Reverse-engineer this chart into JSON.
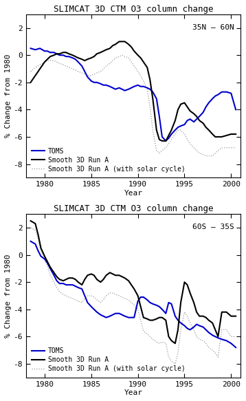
{
  "title": "SLIMCAT 3D CTM O3 column change",
  "ylabel": "% Change from 1980",
  "xlabel": "Year",
  "xlim": [
    1978.0,
    2001.0
  ],
  "ylim": [
    -9,
    3
  ],
  "yticks": [
    -8,
    -6,
    -4,
    -2,
    0,
    2
  ],
  "xticks": [
    1980,
    1985,
    1990,
    1995,
    2000
  ],
  "panel1_label": "35N – 60N",
  "panel2_label": "60S – 35S",
  "colors": {
    "toms": "#0000cc",
    "run_a": "#000000",
    "solar": "#999999"
  },
  "legend_entries": [
    "TOMS",
    "Smooth 3D Run A",
    "Smooth 3D Run A (with solar cycle)"
  ],
  "panel1": {
    "toms_x": [
      1978.5,
      1979.0,
      1979.5,
      1980.0,
      1980.3,
      1980.6,
      1981.0,
      1981.3,
      1981.6,
      1982.0,
      1982.3,
      1982.6,
      1983.0,
      1983.3,
      1983.6,
      1984.0,
      1984.3,
      1984.6,
      1985.0,
      1985.3,
      1985.6,
      1986.0,
      1986.3,
      1986.6,
      1987.0,
      1987.3,
      1987.6,
      1988.0,
      1988.3,
      1988.6,
      1989.0,
      1989.3,
      1989.6,
      1990.0,
      1990.3,
      1990.6,
      1991.0,
      1991.3,
      1991.6,
      1992.0,
      1992.3,
      1992.6,
      1993.0,
      1993.3,
      1993.6,
      1994.0,
      1994.3,
      1994.6,
      1995.0,
      1995.3,
      1995.6,
      1996.0,
      1996.3,
      1996.6,
      1997.0,
      1997.3,
      1997.6,
      1998.0,
      1998.3,
      1998.6,
      1999.0,
      1999.5,
      2000.0,
      2000.5
    ],
    "toms_y": [
      0.5,
      0.4,
      0.5,
      0.3,
      0.3,
      0.2,
      0.2,
      0.1,
      0.0,
      0.0,
      -0.1,
      -0.1,
      -0.2,
      -0.3,
      -0.5,
      -0.8,
      -1.2,
      -1.6,
      -1.9,
      -2.0,
      -2.0,
      -2.1,
      -2.2,
      -2.2,
      -2.3,
      -2.4,
      -2.5,
      -2.4,
      -2.5,
      -2.6,
      -2.5,
      -2.4,
      -2.3,
      -2.2,
      -2.3,
      -2.3,
      -2.4,
      -2.5,
      -2.7,
      -3.2,
      -4.5,
      -6.0,
      -6.3,
      -6.1,
      -5.8,
      -5.5,
      -5.3,
      -5.2,
      -5.1,
      -4.8,
      -4.7,
      -4.9,
      -4.7,
      -4.5,
      -4.2,
      -3.8,
      -3.5,
      -3.2,
      -3.0,
      -2.9,
      -2.7,
      -2.7,
      -2.8,
      -4.0
    ],
    "runa_x": [
      1978.5,
      1979.0,
      1979.5,
      1980.0,
      1980.3,
      1980.6,
      1981.0,
      1981.3,
      1981.6,
      1982.0,
      1982.3,
      1982.6,
      1983.0,
      1983.3,
      1983.6,
      1984.0,
      1984.3,
      1984.6,
      1985.0,
      1985.3,
      1985.6,
      1986.0,
      1986.3,
      1986.6,
      1987.0,
      1987.3,
      1987.6,
      1988.0,
      1988.3,
      1988.6,
      1989.0,
      1989.3,
      1989.6,
      1990.0,
      1990.3,
      1990.6,
      1991.0,
      1991.3,
      1991.6,
      1992.0,
      1992.3,
      1992.6,
      1993.0,
      1993.3,
      1993.6,
      1994.0,
      1994.3,
      1994.6,
      1995.0,
      1995.3,
      1995.6,
      1996.0,
      1996.3,
      1996.6,
      1997.0,
      1997.3,
      1997.6,
      1998.0,
      1998.3,
      1998.6,
      1999.0,
      1999.5,
      2000.0,
      2000.5
    ],
    "runa_y": [
      -2.0,
      -1.5,
      -1.0,
      -0.5,
      -0.3,
      -0.1,
      0.0,
      0.1,
      0.1,
      0.2,
      0.2,
      0.1,
      0.0,
      -0.1,
      -0.2,
      -0.3,
      -0.4,
      -0.3,
      -0.2,
      -0.1,
      0.1,
      0.2,
      0.3,
      0.4,
      0.5,
      0.7,
      0.8,
      1.0,
      1.0,
      1.0,
      0.8,
      0.6,
      0.3,
      0.0,
      -0.2,
      -0.5,
      -0.9,
      -1.8,
      -3.2,
      -5.5,
      -6.2,
      -6.3,
      -6.3,
      -5.9,
      -5.5,
      -4.8,
      -4.0,
      -3.6,
      -3.5,
      -3.8,
      -4.1,
      -4.3,
      -4.5,
      -4.8,
      -5.0,
      -5.3,
      -5.5,
      -5.8,
      -6.0,
      -6.0,
      -6.0,
      -5.9,
      -5.8,
      -5.8
    ],
    "solar_x": [
      1978.5,
      1979.0,
      1979.5,
      1980.0,
      1980.3,
      1980.6,
      1981.0,
      1981.3,
      1981.6,
      1982.0,
      1982.3,
      1982.6,
      1983.0,
      1983.3,
      1983.6,
      1984.0,
      1984.3,
      1984.6,
      1985.0,
      1985.3,
      1985.6,
      1986.0,
      1986.3,
      1986.6,
      1987.0,
      1987.3,
      1987.6,
      1988.0,
      1988.3,
      1988.6,
      1989.0,
      1989.3,
      1989.6,
      1990.0,
      1990.3,
      1990.6,
      1991.0,
      1991.3,
      1991.6,
      1992.0,
      1992.3,
      1992.6,
      1993.0,
      1993.3,
      1993.6,
      1994.0,
      1994.3,
      1994.6,
      1995.0,
      1995.3,
      1995.6,
      1996.0,
      1996.3,
      1996.6,
      1997.0,
      1997.3,
      1997.6,
      1998.0,
      1998.3,
      1998.6,
      1999.0,
      1999.5,
      2000.0,
      2000.5
    ],
    "solar_y": [
      -1.2,
      -0.9,
      -0.7,
      -0.5,
      -0.4,
      -0.4,
      -0.4,
      -0.5,
      -0.6,
      -0.7,
      -0.8,
      -0.9,
      -1.0,
      -1.1,
      -1.2,
      -1.3,
      -1.4,
      -1.5,
      -1.5,
      -1.4,
      -1.3,
      -1.2,
      -1.0,
      -0.8,
      -0.6,
      -0.4,
      -0.2,
      -0.1,
      0.0,
      -0.1,
      -0.2,
      -0.5,
      -0.8,
      -1.2,
      -1.5,
      -1.9,
      -2.5,
      -3.8,
      -5.5,
      -7.0,
      -7.2,
      -7.0,
      -6.8,
      -6.5,
      -6.2,
      -5.8,
      -5.5,
      -5.5,
      -5.8,
      -6.2,
      -6.5,
      -6.8,
      -7.0,
      -7.2,
      -7.3,
      -7.4,
      -7.4,
      -7.4,
      -7.2,
      -7.0,
      -6.8,
      -6.8,
      -6.8,
      -6.8
    ]
  },
  "panel2": {
    "toms_x": [
      1978.5,
      1979.0,
      1979.3,
      1979.6,
      1980.0,
      1980.3,
      1980.6,
      1981.0,
      1981.3,
      1981.6,
      1982.0,
      1982.3,
      1982.6,
      1983.0,
      1983.3,
      1983.6,
      1984.0,
      1984.3,
      1984.6,
      1985.0,
      1985.3,
      1985.6,
      1986.0,
      1986.3,
      1986.6,
      1987.0,
      1987.3,
      1987.6,
      1988.0,
      1988.3,
      1988.6,
      1989.0,
      1989.3,
      1989.6,
      1990.0,
      1990.3,
      1990.6,
      1991.0,
      1991.3,
      1991.6,
      1992.0,
      1992.3,
      1992.6,
      1993.0,
      1993.3,
      1993.6,
      1994.0,
      1994.3,
      1994.6,
      1995.0,
      1995.3,
      1995.6,
      1996.0,
      1996.3,
      1996.6,
      1997.0,
      1997.3,
      1997.6,
      1998.0,
      1998.3,
      1998.6,
      1999.0,
      1999.5,
      2000.0,
      2000.5
    ],
    "toms_y": [
      1.0,
      0.8,
      0.3,
      -0.1,
      -0.3,
      -0.6,
      -1.0,
      -1.5,
      -1.9,
      -2.1,
      -2.1,
      -2.2,
      -2.2,
      -2.2,
      -2.3,
      -2.4,
      -2.5,
      -3.0,
      -3.5,
      -3.8,
      -4.0,
      -4.2,
      -4.4,
      -4.5,
      -4.6,
      -4.5,
      -4.4,
      -4.3,
      -4.3,
      -4.4,
      -4.5,
      -4.6,
      -4.6,
      -4.6,
      -3.4,
      -3.1,
      -3.1,
      -3.3,
      -3.5,
      -3.6,
      -3.7,
      -3.8,
      -4.0,
      -4.3,
      -3.5,
      -3.6,
      -4.5,
      -4.8,
      -5.0,
      -5.2,
      -5.4,
      -5.5,
      -5.3,
      -5.1,
      -5.2,
      -5.3,
      -5.5,
      -5.7,
      -5.9,
      -6.0,
      -6.1,
      -6.2,
      -6.3,
      -6.5,
      -6.8
    ],
    "runa_x": [
      1978.5,
      1979.0,
      1979.3,
      1979.6,
      1980.0,
      1980.3,
      1980.6,
      1981.0,
      1981.3,
      1981.6,
      1982.0,
      1982.3,
      1982.6,
      1983.0,
      1983.3,
      1983.6,
      1984.0,
      1984.3,
      1984.6,
      1985.0,
      1985.3,
      1985.6,
      1986.0,
      1986.3,
      1986.6,
      1987.0,
      1987.3,
      1987.6,
      1988.0,
      1988.3,
      1988.6,
      1989.0,
      1989.3,
      1989.6,
      1990.0,
      1990.3,
      1990.6,
      1991.0,
      1991.3,
      1991.6,
      1992.0,
      1992.3,
      1992.6,
      1993.0,
      1993.3,
      1993.6,
      1994.0,
      1994.3,
      1994.6,
      1995.0,
      1995.3,
      1995.6,
      1996.0,
      1996.3,
      1996.6,
      1997.0,
      1997.3,
      1997.6,
      1998.0,
      1998.3,
      1998.6,
      1999.0,
      1999.5,
      2000.0,
      2000.5
    ],
    "runa_y": [
      2.5,
      2.3,
      1.5,
      0.5,
      -0.1,
      -0.5,
      -0.9,
      -1.3,
      -1.6,
      -1.8,
      -1.9,
      -1.8,
      -1.7,
      -1.7,
      -1.8,
      -2.0,
      -2.2,
      -1.8,
      -1.5,
      -1.4,
      -1.5,
      -1.8,
      -2.0,
      -1.8,
      -1.5,
      -1.3,
      -1.4,
      -1.5,
      -1.5,
      -1.6,
      -1.7,
      -1.9,
      -2.2,
      -2.5,
      -3.0,
      -3.8,
      -4.6,
      -4.7,
      -4.8,
      -4.8,
      -4.7,
      -4.6,
      -4.6,
      -4.8,
      -6.0,
      -6.3,
      -6.5,
      -5.5,
      -3.5,
      -2.0,
      -2.2,
      -2.8,
      -3.5,
      -4.2,
      -4.5,
      -4.5,
      -4.6,
      -4.8,
      -5.0,
      -5.5,
      -6.0,
      -4.2,
      -4.2,
      -4.5,
      -4.5
    ],
    "solar_x": [
      1978.5,
      1979.0,
      1979.3,
      1979.6,
      1980.0,
      1980.3,
      1980.6,
      1981.0,
      1981.3,
      1981.6,
      1982.0,
      1982.3,
      1982.6,
      1983.0,
      1983.3,
      1983.6,
      1984.0,
      1984.3,
      1984.6,
      1985.0,
      1985.3,
      1985.6,
      1986.0,
      1986.3,
      1986.6,
      1987.0,
      1987.3,
      1987.6,
      1988.0,
      1988.3,
      1988.6,
      1989.0,
      1989.3,
      1989.6,
      1990.0,
      1990.3,
      1990.6,
      1991.0,
      1991.3,
      1991.6,
      1992.0,
      1992.3,
      1992.6,
      1993.0,
      1993.3,
      1993.6,
      1994.0,
      1994.3,
      1994.6,
      1995.0,
      1995.3,
      1995.6,
      1996.0,
      1996.3,
      1996.6,
      1997.0,
      1997.3,
      1997.6,
      1998.0,
      1998.3,
      1998.6,
      1999.0,
      1999.5,
      2000.0,
      2000.5
    ],
    "solar_y": [
      2.0,
      1.8,
      1.2,
      0.3,
      -0.3,
      -0.8,
      -1.5,
      -2.0,
      -2.4,
      -2.7,
      -2.9,
      -3.0,
      -3.1,
      -3.2,
      -3.3,
      -3.4,
      -3.5,
      -3.2,
      -3.0,
      -3.0,
      -3.1,
      -3.3,
      -3.5,
      -3.3,
      -3.0,
      -2.8,
      -2.8,
      -2.9,
      -3.0,
      -3.1,
      -3.2,
      -3.3,
      -3.5,
      -3.7,
      -4.0,
      -4.8,
      -5.6,
      -5.8,
      -6.0,
      -6.2,
      -6.4,
      -6.5,
      -6.4,
      -6.5,
      -7.5,
      -7.8,
      -8.0,
      -7.2,
      -5.5,
      -4.2,
      -4.5,
      -5.0,
      -5.5,
      -6.0,
      -6.2,
      -6.3,
      -6.5,
      -6.8,
      -7.0,
      -7.2,
      -7.5,
      -5.5,
      -5.5,
      -6.0,
      -6.0
    ]
  },
  "background_color": "#ffffff",
  "plot_bg": "#ffffff"
}
